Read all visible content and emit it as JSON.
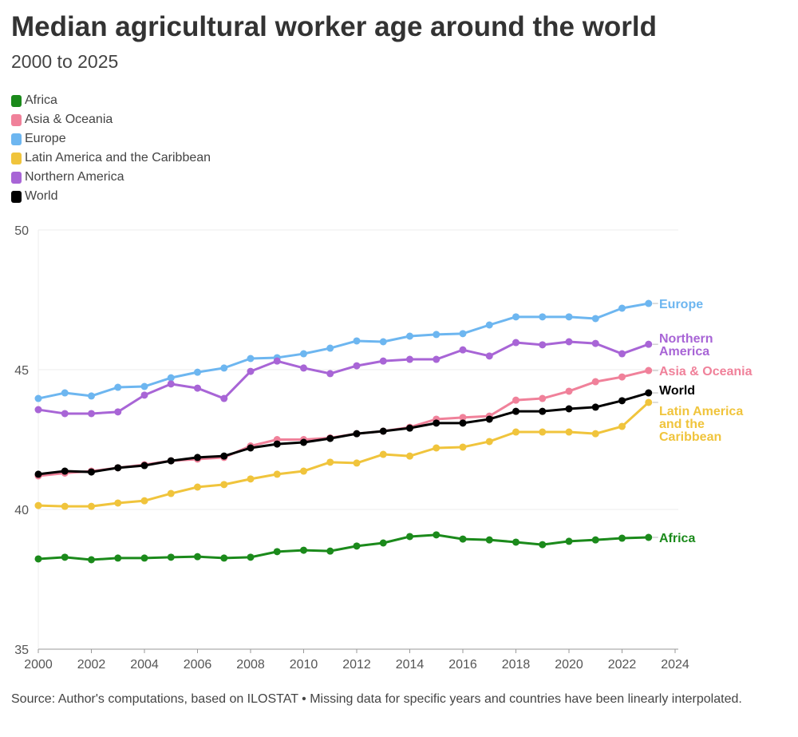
{
  "chart_data": {
    "type": "line",
    "title": "Median agricultural worker age around the world",
    "subtitle": "2000 to 2025",
    "source": "Source: Author's computations, based on ILOSTAT • Missing data for specific years and countries have been linearly interpolated.",
    "xlim": [
      2000,
      2024
    ],
    "ylim": [
      35,
      50
    ],
    "x_ticks": [
      2000,
      2002,
      2004,
      2006,
      2008,
      2010,
      2012,
      2014,
      2016,
      2018,
      2020,
      2022,
      2024
    ],
    "y_ticks": [
      35,
      40,
      45,
      50
    ],
    "grid": "horizontal",
    "legend_placement": "top-left",
    "x": [
      2000,
      2001,
      2002,
      2003,
      2004,
      2005,
      2006,
      2007,
      2008,
      2009,
      2010,
      2011,
      2012,
      2013,
      2014,
      2015,
      2016,
      2017,
      2018,
      2019,
      2020,
      2021,
      2022,
      2023
    ],
    "series": [
      {
        "name": "Africa",
        "color": "#1b8a1b",
        "label": [
          "Africa"
        ],
        "values": [
          38.23,
          38.29,
          38.2,
          38.26,
          38.26,
          38.29,
          38.31,
          38.26,
          38.29,
          38.49,
          38.54,
          38.51,
          38.69,
          38.8,
          39.03,
          39.09,
          38.94,
          38.91,
          38.83,
          38.74,
          38.86,
          38.91,
          38.97,
          39.0
        ]
      },
      {
        "name": "Asia & Oceania",
        "color": "#f0819a",
        "label": [
          "Asia & Oceania"
        ],
        "values": [
          41.2,
          41.3,
          41.37,
          41.49,
          41.6,
          41.74,
          41.8,
          41.86,
          42.27,
          42.5,
          42.5,
          42.56,
          42.71,
          42.8,
          42.94,
          43.23,
          43.29,
          43.34,
          43.91,
          43.97,
          44.23,
          44.57,
          44.74,
          44.97
        ]
      },
      {
        "name": "Europe",
        "color": "#6db6f0",
        "label": [
          "Europe"
        ],
        "values": [
          43.97,
          44.17,
          44.06,
          44.37,
          44.4,
          44.71,
          44.91,
          45.06,
          45.4,
          45.43,
          45.57,
          45.77,
          46.03,
          46.0,
          46.2,
          46.26,
          46.29,
          46.6,
          46.89,
          46.89,
          46.89,
          46.83,
          47.2,
          47.37
        ]
      },
      {
        "name": "Latin America and the Caribbean",
        "color": "#f0c43c",
        "label": [
          "Latin America",
          "and the",
          "Caribbean"
        ],
        "values": [
          40.14,
          40.11,
          40.11,
          40.23,
          40.31,
          40.57,
          40.8,
          40.89,
          41.09,
          41.26,
          41.37,
          41.69,
          41.66,
          41.97,
          41.91,
          42.2,
          42.23,
          42.43,
          42.77,
          42.77,
          42.77,
          42.71,
          42.97,
          43.83
        ]
      },
      {
        "name": "Northern America",
        "color": "#a865d6",
        "label": [
          "Northern",
          "America"
        ],
        "values": [
          43.57,
          43.43,
          43.43,
          43.49,
          44.09,
          44.49,
          44.34,
          43.97,
          44.94,
          45.31,
          45.06,
          44.86,
          45.14,
          45.31,
          45.37,
          45.37,
          45.71,
          45.49,
          45.97,
          45.89,
          46.0,
          45.94,
          45.57,
          45.91
        ]
      },
      {
        "name": "World",
        "color": "#000000",
        "label": [
          "World"
        ],
        "values": [
          41.26,
          41.37,
          41.34,
          41.49,
          41.57,
          41.74,
          41.86,
          41.91,
          42.2,
          42.34,
          42.4,
          42.54,
          42.71,
          42.8,
          42.91,
          43.09,
          43.09,
          43.23,
          43.51,
          43.51,
          43.6,
          43.66,
          43.89,
          44.17
        ]
      }
    ]
  }
}
